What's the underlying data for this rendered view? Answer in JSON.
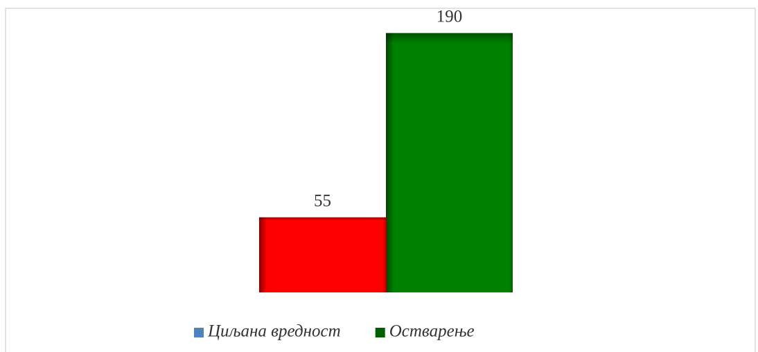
{
  "chart_data": {
    "type": "bar",
    "categories": [
      null
    ],
    "series": [
      {
        "name": "Циљана вредност",
        "color": "#ff0000",
        "legend_color": "#4f81bd",
        "values": [
          55
        ]
      },
      {
        "name": "Остварење",
        "color": "#008000",
        "legend_color": "#006000",
        "values": [
          190
        ]
      }
    ],
    "ylim": [
      0,
      200
    ],
    "grid": false,
    "legend": "bottom"
  }
}
